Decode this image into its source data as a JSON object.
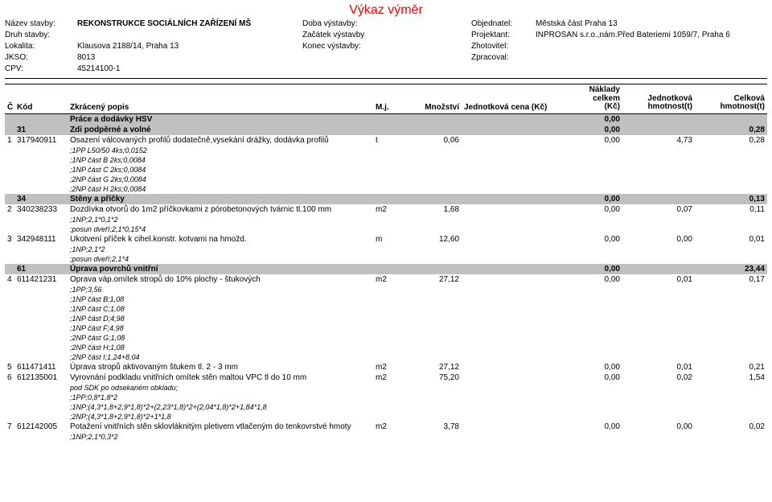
{
  "title": "Výkaz výměr",
  "header": {
    "rows": [
      {
        "l1": "Název stavby:",
        "v1": "REKONSTRUKCE SOCIÁLNÍCH ZAŘÍZENÍ MŠ",
        "l2": "Doba výstavby:",
        "v2": "",
        "l3": "Objednatel:",
        "v3": "Městská část Praha 13",
        "v1_bold": true
      },
      {
        "l1": "Druh stavby:",
        "v1": "",
        "l2": "Začátek výstavby",
        "v2": "",
        "l3": "Projektant:",
        "v3": "INPROSAN s.r.o.,nám.Před Bateriemi 1059/7,  Praha 6"
      },
      {
        "l1": "Lokalita:",
        "v1": "Klausova 2188/14, Praha 13",
        "l2": "Konec výstavby:",
        "v2": "",
        "l3": "Zhotovitel:",
        "v3": ""
      },
      {
        "l1": "JKSO:",
        "v1": "8013",
        "l2": "",
        "v2": "",
        "l3": "Zpracoval:",
        "v3": ""
      },
      {
        "l1": "CPV:",
        "v1": "45214100-1",
        "l2": "",
        "v2": "",
        "l3": "",
        "v3": ""
      }
    ]
  },
  "columns": {
    "c1": "Č",
    "c2": "Kód",
    "c3": "Zkrácený popis",
    "c4": "M.j.",
    "c5": "Množství",
    "c6": "Jednotková cena (Kč)",
    "c7a": "Náklady celkem",
    "c7b": "(Kč)",
    "c8a": "Jednotková",
    "c8b": "hmotnost(t)",
    "c9a": "Celková",
    "c9b": "hmotnost(t)"
  },
  "rows": [
    {
      "type": "super",
      "desc": "Práce a dodávky HSV",
      "nak": "0,00"
    },
    {
      "type": "section",
      "code": "31",
      "desc": "Zdi podpěrné a volné",
      "nak": "0,00",
      "chm": "0,28"
    },
    {
      "type": "item",
      "idx": "1",
      "code": "317940911",
      "desc": "Osazení válcovaných profilů dodatečně,vysekání drážky, dodávka profilů",
      "mj": "t",
      "qty": "0,06",
      "nak": "0,00",
      "jhm": "4,73",
      "chm": "0,28"
    },
    {
      "type": "note",
      "text": ";1PP L50/50 4ks;0,0152"
    },
    {
      "type": "note",
      "text": ";1NP část B 2ks;0,0084"
    },
    {
      "type": "note",
      "text": ";1NP část C 2ks;0,0084"
    },
    {
      "type": "note",
      "text": ";2NP část G 2ks;0,0084"
    },
    {
      "type": "note",
      "text": ";2NP část H 2ks;0,0084"
    },
    {
      "type": "section",
      "code": "34",
      "desc": "Stěny a příčky",
      "nak": "0,00",
      "chm": "0,13"
    },
    {
      "type": "item",
      "idx": "2",
      "code": "340238233",
      "desc": "Dozdívka otvorů do 1m2 příčkovkami z pórobetonových tvárnic tl.100 mm",
      "mj": "m2",
      "qty": "1,68",
      "nak": "0,00",
      "jhm": "0,07",
      "chm": "0,11"
    },
    {
      "type": "note",
      "text": ";1NP;2,1*0,1*2"
    },
    {
      "type": "note",
      "text": ";posun dveří;2,1*0,15*4"
    },
    {
      "type": "item",
      "idx": "3",
      "code": "342948111",
      "desc": "Ukotvení příček k cihel.konstr. kotvami na hmožd.",
      "mj": "m",
      "qty": "12,60",
      "nak": "0,00",
      "jhm": "0,00",
      "chm": "0,01"
    },
    {
      "type": "note",
      "text": ";1NP;2,1*2"
    },
    {
      "type": "note",
      "text": ";posun dveří;2,1*4"
    },
    {
      "type": "section",
      "code": "61",
      "desc": "Úprava povrchů vnitřní",
      "nak": "0,00",
      "chm": "23,44"
    },
    {
      "type": "item",
      "idx": "4",
      "code": "611421231",
      "desc": "Oprava váp.omítek stropů do 10% plochy - štukových",
      "mj": "m2",
      "qty": "27,12",
      "nak": "0,00",
      "jhm": "0,01",
      "chm": "0,17"
    },
    {
      "type": "note",
      "text": ";1PP;3,56"
    },
    {
      "type": "note",
      "text": ";1NP část B;1,08"
    },
    {
      "type": "note",
      "text": ";1NP část C;1,08"
    },
    {
      "type": "note",
      "text": ";1NP část D;4,98"
    },
    {
      "type": "note",
      "text": ";1NP část F;4,98"
    },
    {
      "type": "note",
      "text": ";2NP část G;1,08"
    },
    {
      "type": "note",
      "text": ";2NP část H;1,08"
    },
    {
      "type": "note",
      "text": ";2NP část I;1,24+8,04"
    },
    {
      "type": "item",
      "idx": "5",
      "code": "611471411",
      "desc": "Úprava stropů aktivovaným štukem tl. 2 - 3 mm",
      "mj": "m2",
      "qty": "27,12",
      "nak": "0,00",
      "jhm": "0,01",
      "chm": "0,21"
    },
    {
      "type": "item",
      "idx": "6",
      "code": "612135001",
      "desc": "Vyrovnání podkladu vnitřních omítek stěn maltou VPC tl do 10 mm",
      "mj": "m2",
      "qty": "75,20",
      "nak": "0,00",
      "jhm": "0,02",
      "chm": "1,54"
    },
    {
      "type": "note",
      "text": "pod SDK po odsekaném obkladu;"
    },
    {
      "type": "note",
      "text": ";1PP;0,8*1,8*2"
    },
    {
      "type": "note",
      "text": ";1NP;(4,3*1,8+2,9*1,8)*2+(2,23*1,8)*2+(2,04*1,8)*2+1,84*1,8"
    },
    {
      "type": "note",
      "text": ";2NP;(4,3*1,8+2,9*1,8)*2+1*1,8"
    },
    {
      "type": "item",
      "idx": "7",
      "code": "612142005",
      "desc": "Potažení vnitřních stěn sklovláknitým pletivem vtlačeným do tenkovrstvé hmoty",
      "mj": "m2",
      "qty": "3,78",
      "nak": "0,00",
      "jhm": "0,00",
      "chm": "0,02"
    },
    {
      "type": "note",
      "text": ";1NP;2,1*0,3*2"
    }
  ]
}
